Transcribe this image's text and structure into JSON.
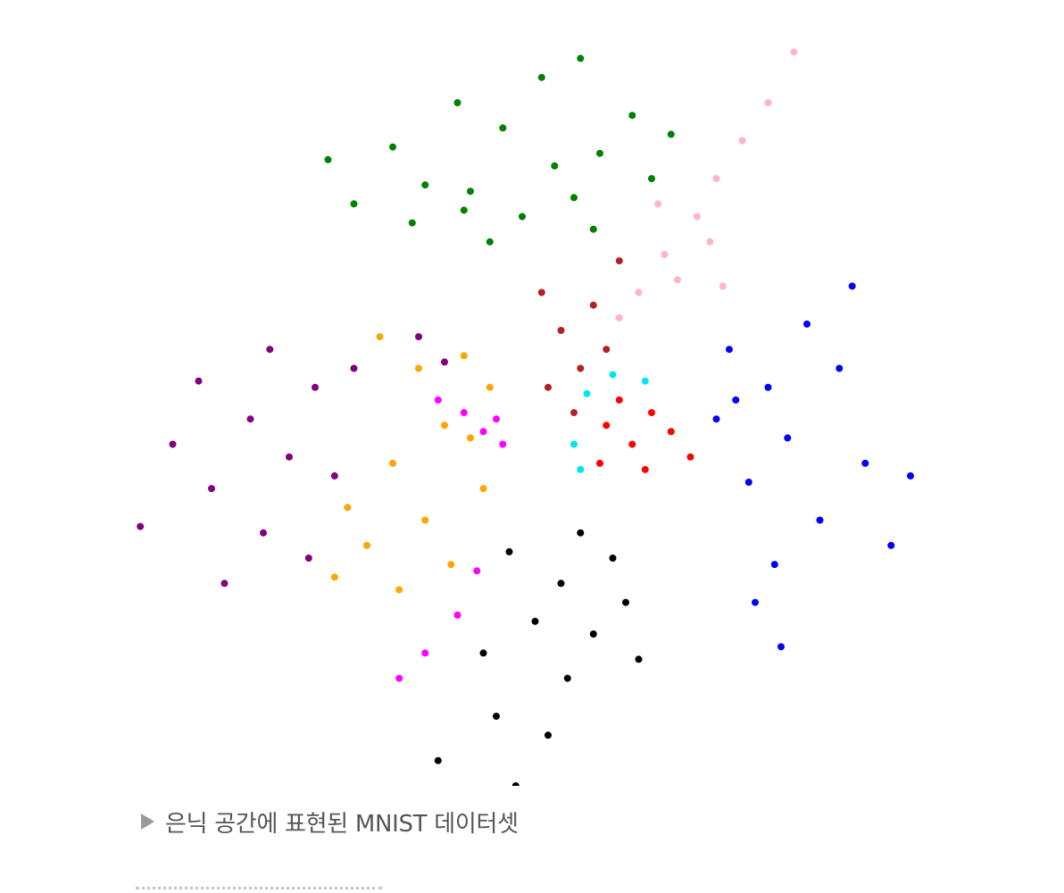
{
  "caption": {
    "marker_icon": "triangle-right-icon",
    "text": "은닉 공간에 표현된 MNIST 데이터셋"
  },
  "chart_data": {
    "type": "scatter",
    "title": "",
    "xlabel": "",
    "ylabel": "",
    "axes_visible": false,
    "grid": false,
    "legend": "none",
    "xlim": [
      -6,
      6
    ],
    "ylim": [
      -6,
      6
    ],
    "series": [
      {
        "color": "#008000",
        "points": [
          [
            -0.8,
            3.4
          ],
          [
            0.5,
            3.8
          ],
          [
            -1.5,
            3.5
          ],
          [
            1.2,
            4.0
          ],
          [
            -0.3,
            4.4
          ],
          [
            0.8,
            3.3
          ],
          [
            -2.0,
            4.1
          ],
          [
            1.7,
            4.6
          ],
          [
            0.0,
            3.0
          ],
          [
            -1.0,
            4.8
          ],
          [
            2.0,
            3.6
          ],
          [
            -2.6,
            3.2
          ],
          [
            0.3,
            5.2
          ],
          [
            -0.5,
            2.6
          ],
          [
            1.1,
            2.8
          ],
          [
            -1.7,
            2.9
          ],
          [
            2.3,
            4.3
          ],
          [
            -3.0,
            3.9
          ],
          [
            0.9,
            5.5
          ],
          [
            -0.9,
            3.1
          ]
        ]
      },
      {
        "color": "#FFB6C1",
        "points": [
          [
            2.2,
            2.4
          ],
          [
            2.7,
            3.0
          ],
          [
            3.0,
            3.6
          ],
          [
            1.8,
            1.8
          ],
          [
            2.4,
            2.0
          ],
          [
            3.4,
            4.2
          ],
          [
            2.9,
            2.6
          ],
          [
            1.5,
            1.4
          ],
          [
            3.8,
            4.8
          ],
          [
            2.1,
            3.2
          ],
          [
            3.1,
            1.9
          ],
          [
            4.2,
            5.6
          ]
        ]
      },
      {
        "color": "#0000FF",
        "points": [
          [
            3.2,
            0.9
          ],
          [
            3.8,
            0.3
          ],
          [
            4.1,
            -0.5
          ],
          [
            3.5,
            -1.2
          ],
          [
            4.6,
            -1.8
          ],
          [
            3.0,
            -0.2
          ],
          [
            4.9,
            0.6
          ],
          [
            5.3,
            -0.9
          ],
          [
            3.9,
            -2.5
          ],
          [
            4.4,
            1.3
          ],
          [
            5.7,
            -2.2
          ],
          [
            3.6,
            -3.1
          ],
          [
            5.1,
            1.9
          ],
          [
            4.0,
            -3.8
          ],
          [
            6.0,
            -1.1
          ],
          [
            3.3,
            0.1
          ]
        ]
      },
      {
        "color": "#800080",
        "points": [
          [
            -4.2,
            -0.2
          ],
          [
            -3.6,
            -0.8
          ],
          [
            -4.8,
            -1.3
          ],
          [
            -3.2,
            0.3
          ],
          [
            -5.4,
            -0.6
          ],
          [
            -4.0,
            -2.0
          ],
          [
            -2.9,
            -1.1
          ],
          [
            -5.9,
            -1.9
          ],
          [
            -3.9,
            0.9
          ],
          [
            -4.6,
            -2.8
          ],
          [
            -2.6,
            0.6
          ],
          [
            -5.0,
            0.4
          ],
          [
            -3.3,
            -2.4
          ],
          [
            -1.6,
            1.1
          ],
          [
            -1.2,
            0.7
          ]
        ]
      },
      {
        "color": "#FFA500",
        "points": [
          [
            -1.6,
            0.6
          ],
          [
            -1.2,
            -0.3
          ],
          [
            -2.0,
            -0.9
          ],
          [
            -0.8,
            -0.5
          ],
          [
            -1.5,
            -1.8
          ],
          [
            -2.4,
            -2.2
          ],
          [
            -0.9,
            0.8
          ],
          [
            -1.9,
            -2.9
          ],
          [
            -0.6,
            -1.3
          ],
          [
            -2.7,
            -1.6
          ],
          [
            -1.1,
            -2.5
          ],
          [
            -2.2,
            1.1
          ],
          [
            -0.5,
            0.3
          ],
          [
            -2.9,
            -2.7
          ]
        ]
      },
      {
        "color": "#FF00FF",
        "points": [
          [
            -0.9,
            -0.1
          ],
          [
            -0.6,
            -0.4
          ],
          [
            -1.3,
            0.1
          ],
          [
            -0.4,
            -0.2
          ],
          [
            -1.0,
            -3.3
          ],
          [
            -1.5,
            -3.9
          ],
          [
            -0.7,
            -2.6
          ],
          [
            -1.9,
            -4.3
          ],
          [
            -0.3,
            -0.6
          ]
        ]
      },
      {
        "color": "#B22222",
        "points": [
          [
            0.6,
            1.2
          ],
          [
            0.9,
            0.6
          ],
          [
            0.4,
            0.3
          ],
          [
            1.1,
            1.6
          ],
          [
            0.8,
            -0.1
          ],
          [
            1.3,
            0.9
          ],
          [
            0.3,
            1.8
          ],
          [
            1.5,
            2.3
          ]
        ]
      },
      {
        "color": "#FF0000",
        "points": [
          [
            1.3,
            -0.3
          ],
          [
            1.7,
            -0.6
          ],
          [
            2.0,
            -0.1
          ],
          [
            1.5,
            0.1
          ],
          [
            1.9,
            -1.0
          ],
          [
            2.3,
            -0.4
          ],
          [
            1.2,
            -0.9
          ],
          [
            2.6,
            -0.8
          ]
        ]
      },
      {
        "color": "#00E5EE",
        "points": [
          [
            1.0,
            0.2
          ],
          [
            1.4,
            0.5
          ],
          [
            0.8,
            -0.6
          ],
          [
            1.9,
            0.4
          ],
          [
            0.9,
            -1.0
          ]
        ]
      },
      {
        "color": "#000000",
        "points": [
          [
            0.9,
            -2.0
          ],
          [
            0.6,
            -2.8
          ],
          [
            1.4,
            -2.4
          ],
          [
            0.2,
            -3.4
          ],
          [
            1.1,
            -3.6
          ],
          [
            -0.2,
            -2.3
          ],
          [
            0.7,
            -4.3
          ],
          [
            -0.6,
            -3.9
          ],
          [
            1.6,
            -3.1
          ],
          [
            -0.4,
            -4.9
          ],
          [
            0.4,
            -5.2
          ],
          [
            -1.3,
            -5.6
          ],
          [
            1.8,
            -4.0
          ],
          [
            -0.1,
            -6.0
          ]
        ]
      }
    ]
  }
}
